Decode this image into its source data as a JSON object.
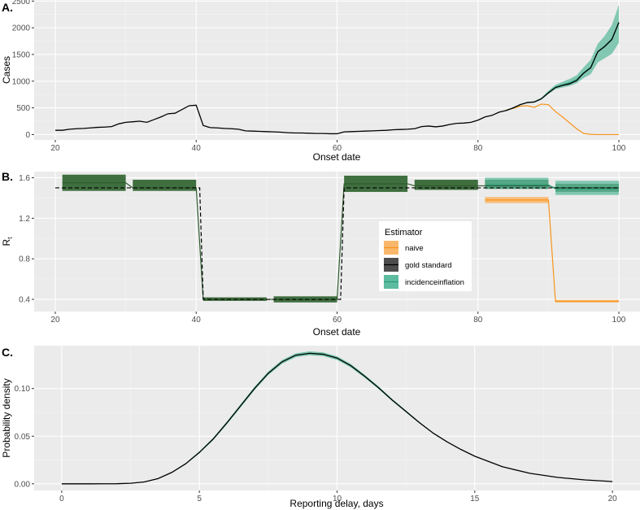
{
  "colors": {
    "naive": "#f7941d",
    "naive_band": "#f9b76b",
    "gold": "#000000",
    "gold_band": "#3f6e3f",
    "gold_band_legend": "#4d4d4d",
    "inflation": "#2a9d7c",
    "inflation_band": "#5dbb9f"
  },
  "chart_data": [
    {
      "panel": "A.",
      "type": "line",
      "xlabel": "Onset date",
      "ylabel": "Cases",
      "xlim": [
        17,
        103
      ],
      "ylim": [
        -100,
        2520
      ],
      "xticks": [
        20,
        40,
        60,
        80,
        100
      ],
      "yticks": [
        0,
        500,
        1000,
        1500,
        2000,
        2500
      ],
      "series": [
        {
          "name": "gold standard",
          "x": [
            20,
            21,
            22,
            23,
            24,
            25,
            26,
            27,
            28,
            29,
            30,
            31,
            32,
            33,
            34,
            35,
            36,
            37,
            38,
            39,
            40,
            41,
            42,
            43,
            44,
            45,
            46,
            47,
            48,
            49,
            50,
            51,
            52,
            53,
            54,
            55,
            56,
            57,
            58,
            59,
            60,
            61,
            62,
            63,
            64,
            65,
            66,
            67,
            68,
            69,
            70,
            71,
            72,
            73,
            74,
            75,
            76,
            77,
            78,
            79,
            80,
            81,
            82,
            83,
            84,
            85,
            86,
            87,
            88,
            89,
            90,
            91,
            92,
            93,
            94,
            95,
            96,
            97,
            98,
            99,
            100
          ],
          "y": [
            80,
            80,
            100,
            110,
            115,
            125,
            135,
            140,
            150,
            200,
            230,
            240,
            250,
            230,
            280,
            330,
            390,
            400,
            470,
            540,
            550,
            170,
            130,
            125,
            115,
            110,
            100,
            70,
            65,
            60,
            55,
            50,
            45,
            35,
            30,
            30,
            25,
            20,
            20,
            15,
            15,
            50,
            55,
            60,
            65,
            70,
            75,
            80,
            90,
            95,
            100,
            110,
            150,
            160,
            145,
            160,
            190,
            210,
            215,
            230,
            270,
            330,
            360,
            420,
            450,
            500,
            560,
            600,
            610,
            670,
            780,
            880,
            920,
            950,
            1010,
            1150,
            1250,
            1550,
            1650,
            1780,
            2100
          ]
        },
        {
          "name": "naive",
          "x": [
            84,
            85,
            86,
            87,
            88,
            89,
            90,
            91,
            92,
            93,
            94,
            95,
            96,
            97,
            98,
            99,
            100
          ],
          "y": [
            460,
            490,
            530,
            540,
            510,
            570,
            560,
            430,
            330,
            220,
            110,
            20,
            5,
            0,
            0,
            0,
            0
          ]
        },
        {
          "name": "incidenceinflation",
          "x": [
            84,
            85,
            86,
            87,
            88,
            89,
            90,
            91,
            92,
            93,
            94,
            95,
            96,
            97,
            98,
            99,
            100
          ],
          "y": [
            450,
            500,
            560,
            600,
            610,
            670,
            790,
            890,
            930,
            970,
            1030,
            1160,
            1260,
            1550,
            1660,
            1790,
            2100
          ],
          "lower": [
            440,
            490,
            550,
            590,
            600,
            655,
            760,
            850,
            880,
            910,
            960,
            1060,
            1130,
            1350,
            1430,
            1510,
            1720
          ],
          "upper": [
            460,
            510,
            570,
            610,
            625,
            690,
            820,
            930,
            990,
            1040,
            1110,
            1260,
            1400,
            1700,
            1850,
            2050,
            2430
          ]
        }
      ]
    },
    {
      "panel": "B.",
      "type": "step",
      "xlabel": "Onset date",
      "ylabel": "R",
      "ylabel_sub": "t",
      "xlim": [
        17,
        103
      ],
      "ylim": [
        0.28,
        1.66
      ],
      "xticks": [
        20,
        40,
        60,
        80,
        100
      ],
      "yticks": [
        0.4,
        0.8,
        1.2,
        1.6
      ],
      "ytick_labels": [
        "0.4",
        "0.8",
        "1.2",
        "1.6"
      ],
      "true_rt": {
        "x": [
          20,
          40.5,
          41,
          60.5,
          61,
          100
        ],
        "y": [
          1.5,
          1.5,
          0.4,
          0.4,
          1.5,
          1.5
        ]
      },
      "series": [
        {
          "name": "gold standard",
          "segments": [
            {
              "x0": 21,
              "x1": 30,
              "mean": 1.55,
              "lower": 1.47,
              "upper": 1.63
            },
            {
              "x0": 31,
              "x1": 40,
              "mean": 1.5,
              "lower": 1.47,
              "upper": 1.58
            },
            {
              "x0": 41,
              "x1": 50,
              "mean": 0.4,
              "lower": 0.385,
              "upper": 0.42
            },
            {
              "x0": 51,
              "x1": 60,
              "mean": 0.4,
              "lower": 0.37,
              "upper": 0.43
            },
            {
              "x0": 61,
              "x1": 70,
              "mean": 1.54,
              "lower": 1.46,
              "upper": 1.62
            },
            {
              "x0": 71,
              "x1": 80,
              "mean": 1.52,
              "lower": 1.48,
              "upper": 1.58
            },
            {
              "x0": 81,
              "x1": 90,
              "mean": 1.52,
              "lower": 1.49,
              "upper": 1.58
            },
            {
              "x0": 91,
              "x1": 100,
              "mean": 1.5,
              "lower": 1.46,
              "upper": 1.54
            }
          ]
        },
        {
          "name": "naive",
          "segments": [
            {
              "x0": 81,
              "x1": 90,
              "mean": 1.38,
              "lower": 1.35,
              "upper": 1.41
            },
            {
              "x0": 91,
              "x1": 100,
              "mean": 0.38,
              "lower": 0.37,
              "upper": 0.395
            }
          ]
        },
        {
          "name": "incidenceinflation",
          "segments": [
            {
              "x0": 81,
              "x1": 90,
              "mean": 1.53,
              "lower": 1.49,
              "upper": 1.6
            },
            {
              "x0": 91,
              "x1": 100,
              "mean": 1.49,
              "lower": 1.43,
              "upper": 1.57
            }
          ]
        }
      ],
      "legend": {
        "title": "Estimator",
        "entries": [
          "naive",
          "gold standard",
          "incidenceinflation"
        ]
      }
    },
    {
      "panel": "C.",
      "type": "line",
      "xlabel": "Reporting delay, days",
      "ylabel": "Probability density",
      "xlim": [
        -1,
        21
      ],
      "ylim": [
        -0.007,
        0.145
      ],
      "xticks": [
        0,
        5,
        10,
        15,
        20
      ],
      "yticks": [
        0.0,
        0.05,
        0.1
      ],
      "ytick_labels": [
        "0.00",
        "0.05",
        "0.10"
      ],
      "series": [
        {
          "name": "gold standard",
          "x": [
            0,
            1,
            2,
            2.5,
            3,
            3.5,
            4,
            4.5,
            5,
            5.5,
            6,
            6.5,
            7,
            7.5,
            8,
            8.5,
            9,
            9.5,
            10,
            10.5,
            11,
            11.5,
            12,
            12.5,
            13,
            13.5,
            14,
            14.5,
            15,
            16,
            17,
            18,
            19,
            20
          ],
          "y": [
            0,
            0,
            0.0001,
            0.0006,
            0.002,
            0.0055,
            0.012,
            0.021,
            0.033,
            0.047,
            0.064,
            0.082,
            0.1,
            0.116,
            0.128,
            0.135,
            0.137,
            0.136,
            0.132,
            0.124,
            0.113,
            0.101,
            0.088,
            0.076,
            0.064,
            0.053,
            0.044,
            0.036,
            0.029,
            0.018,
            0.011,
            0.0068,
            0.0041,
            0.0024
          ]
        },
        {
          "name": "incidenceinflation",
          "band_halfwidth": [
            0,
            0,
            0,
            0,
            0,
            0.0002,
            0.0004,
            0.0007,
            0.001,
            0.0013,
            0.0015,
            0.0017,
            0.0018,
            0.0019,
            0.002,
            0.002,
            0.002,
            0.002,
            0.0019,
            0.0018,
            0.0016,
            0.0014,
            0.0012,
            0.001,
            0.0008,
            0.0006,
            0.0005,
            0.0004,
            0.0003,
            0.0002,
            0.0001,
            0,
            0,
            0
          ]
        }
      ]
    }
  ]
}
